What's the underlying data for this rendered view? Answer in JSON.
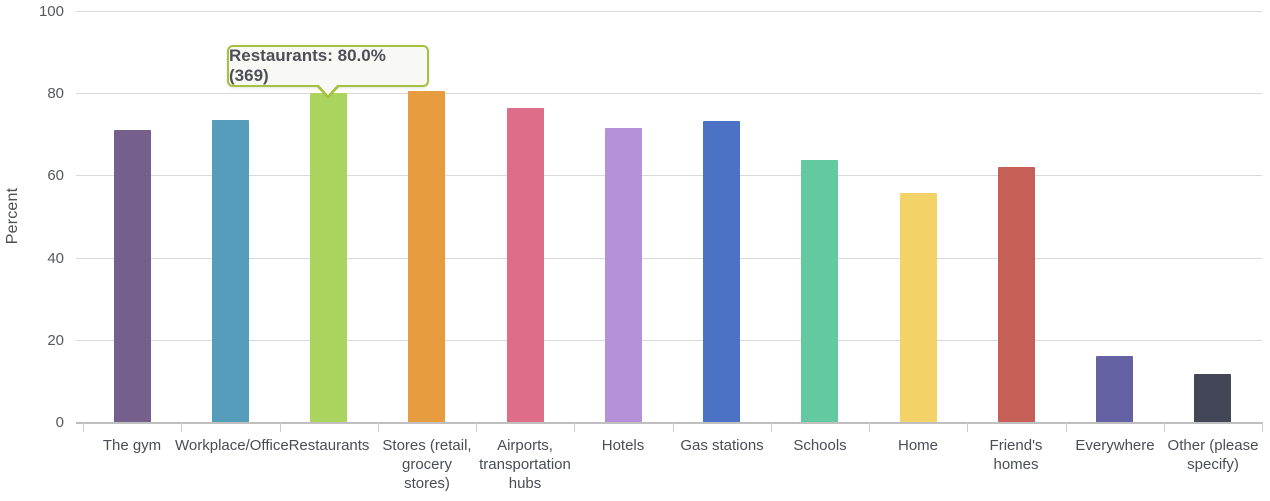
{
  "chart_data": {
    "type": "bar",
    "title": "",
    "xlabel": "",
    "ylabel": "Percent",
    "ylim": [
      0,
      100
    ],
    "yticks": [
      0,
      20,
      40,
      60,
      80,
      100
    ],
    "grid": true,
    "legend": false,
    "categories": [
      "The gym",
      "Workplace/Office",
      "Restaurants",
      "Stores (retail,\ngrocery\nstores)",
      "Airports,\ntransportation\nhubs",
      "Hotels",
      "Gas stations",
      "Schools",
      "Home",
      "Friend's\nhomes",
      "Everywhere",
      "Other (please\nspecify)"
    ],
    "values": [
      71.0,
      73.5,
      80.0,
      80.5,
      76.5,
      71.5,
      73.3,
      63.7,
      55.8,
      62.0,
      16.0,
      11.8
    ],
    "bar_colors": [
      "#75608d",
      "#559dbb",
      "#abd45e",
      "#e89c40",
      "#de6d89",
      "#b690d8",
      "#4c72c5",
      "#63c9a0",
      "#f3d368",
      "#c65f55",
      "#6462a2",
      "#424656"
    ],
    "tooltip": {
      "category": "Restaurants",
      "bar_index": 2,
      "value_percent": "80.0",
      "count": "369",
      "text": "Restaurants: 80.0% (369)"
    }
  },
  "colors": {
    "background": "#ffffff",
    "gridline": "#d9d9d9",
    "axis_line": "#bfbfbf",
    "tick_label": "#55585e",
    "category_label": "#4a4d57",
    "tooltip_border": "#a4c13f",
    "tooltip_bg": "#f8f8f5",
    "tooltip_text": "#4f5057"
  }
}
